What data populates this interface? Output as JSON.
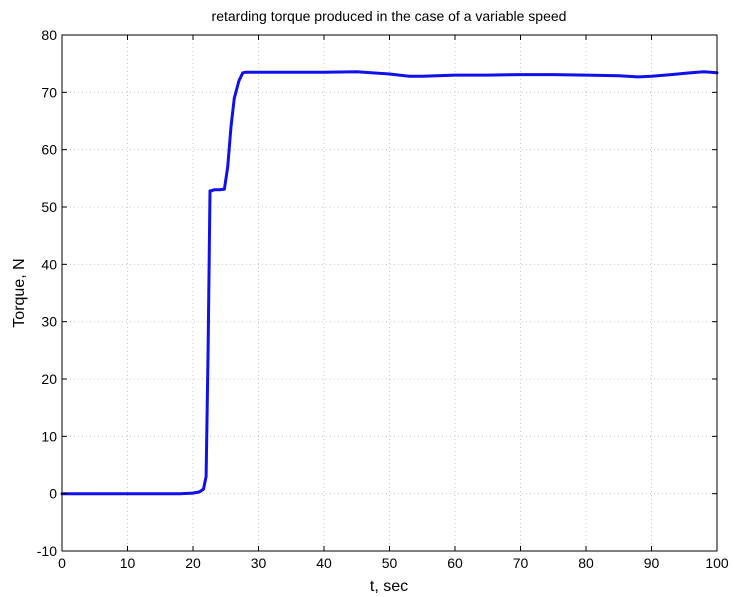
{
  "chart_data": {
    "type": "line",
    "title": "retarding torque produced in the case of a variable speed",
    "xlabel": "t, sec",
    "ylabel": "Torque, N",
    "xlim": [
      0,
      100
    ],
    "ylim": [
      -10,
      80
    ],
    "xticks": [
      0,
      10,
      20,
      30,
      40,
      50,
      60,
      70,
      80,
      90,
      100
    ],
    "yticks": [
      -10,
      0,
      10,
      20,
      30,
      40,
      50,
      60,
      70,
      80
    ],
    "grid": true,
    "series": [
      {
        "color": "#1010ee",
        "x": [
          0,
          5,
          10,
          15,
          18,
          20,
          21,
          21.6,
          22,
          22.3,
          22.6,
          22.8,
          23.2,
          24,
          24.8,
          25.3,
          25.8,
          26.3,
          27,
          27.6,
          28,
          30,
          35,
          40,
          45,
          50,
          53,
          55,
          60,
          65,
          70,
          75,
          80,
          85,
          88,
          90,
          93,
          96,
          98,
          100
        ],
        "y": [
          0,
          0,
          0,
          0,
          0,
          0.1,
          0.3,
          0.8,
          3,
          25,
          52.8,
          52.8,
          53,
          53,
          53.1,
          57,
          64,
          69,
          72,
          73.4,
          73.5,
          73.5,
          73.5,
          73.5,
          73.6,
          73.2,
          72.8,
          72.8,
          73,
          73,
          73.1,
          73.1,
          73,
          72.9,
          72.7,
          72.8,
          73.1,
          73.4,
          73.6,
          73.4
        ]
      }
    ]
  }
}
